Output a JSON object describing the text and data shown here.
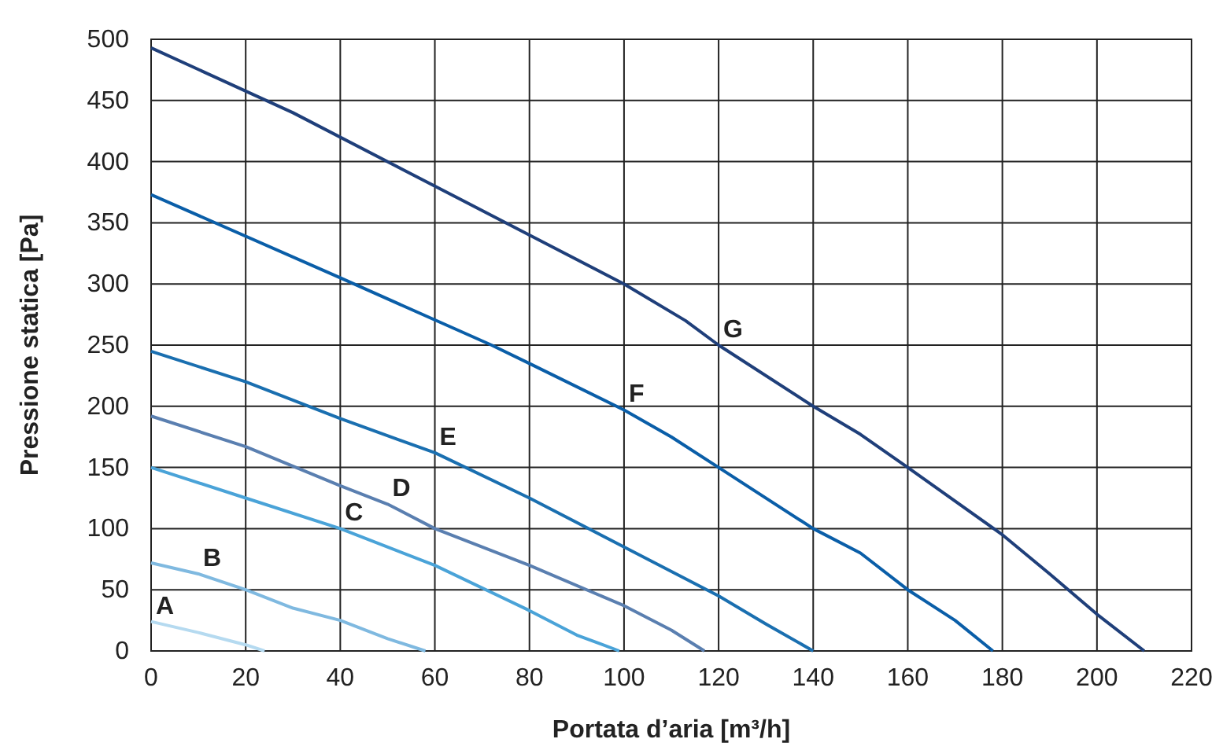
{
  "chart_data": {
    "type": "line",
    "xlabel": "Portata d’aria [m³/h]",
    "ylabel": "Pressione statica [Pa]",
    "xlim": [
      0,
      220
    ],
    "ylim": [
      0,
      500
    ],
    "xticks": [
      0,
      20,
      40,
      60,
      80,
      100,
      120,
      140,
      160,
      180,
      200,
      220
    ],
    "yticks": [
      0,
      50,
      100,
      150,
      200,
      250,
      300,
      350,
      400,
      450,
      500
    ],
    "grid": true,
    "marker": "none",
    "line_style": "solid",
    "series": [
      {
        "name": "A",
        "color": "#b5daf0",
        "x": [
          0,
          10,
          20,
          24
        ],
        "values": [
          24,
          15,
          5,
          0
        ]
      },
      {
        "name": "B",
        "color": "#7fb9e0",
        "x": [
          0,
          10,
          20,
          30,
          40,
          50,
          58
        ],
        "values": [
          72,
          63,
          50,
          35,
          25,
          10,
          0
        ]
      },
      {
        "name": "C",
        "color": "#4aa3d8",
        "x": [
          0,
          20,
          40,
          60,
          80,
          90,
          99
        ],
        "values": [
          150,
          125,
          100,
          70,
          33,
          13,
          0
        ]
      },
      {
        "name": "D",
        "color": "#5a7fb0",
        "x": [
          0,
          20,
          40,
          50,
          60,
          80,
          100,
          110,
          117
        ],
        "values": [
          192,
          167,
          135,
          120,
          100,
          70,
          37,
          17,
          0
        ]
      },
      {
        "name": "E",
        "color": "#1a6fb0",
        "x": [
          0,
          20,
          40,
          60,
          80,
          100,
          120,
          130,
          140
        ],
        "values": [
          245,
          220,
          190,
          162,
          125,
          85,
          45,
          22,
          0
        ]
      },
      {
        "name": "F",
        "color": "#0a5ea8",
        "x": [
          0,
          40,
          72,
          80,
          100,
          110,
          120,
          140,
          150,
          160,
          170,
          178
        ],
        "values": [
          373,
          305,
          250,
          235,
          197,
          175,
          150,
          100,
          80,
          50,
          25,
          0
        ]
      },
      {
        "name": "G",
        "color": "#1f3f7a",
        "x": [
          0,
          30,
          80,
          100,
          113,
          120,
          140,
          150,
          160,
          180,
          190,
          200,
          210
        ],
        "values": [
          493,
          440,
          340,
          300,
          270,
          250,
          200,
          177,
          150,
          95,
          63,
          30,
          0
        ]
      }
    ]
  }
}
